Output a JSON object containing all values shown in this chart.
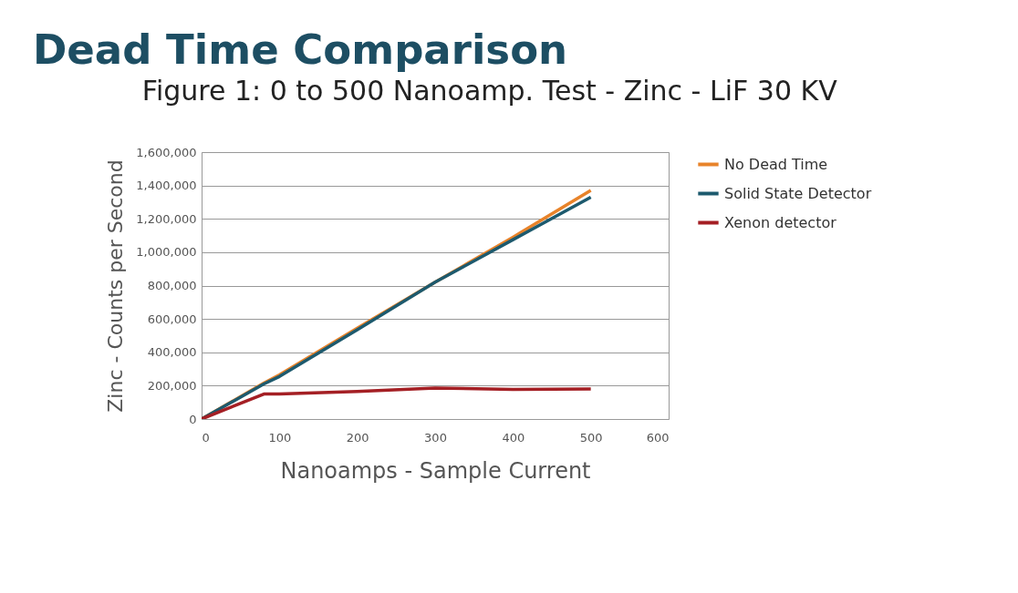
{
  "chart_data": {
    "type": "line",
    "title": "Dead Time Comparison",
    "subtitle": "Figure 1: 0 to 500 Nanoamp. Test - Zinc - LiF 30 KV",
    "xlabel": "Nanoamps - Sample Current",
    "ylabel": "Zinc - Counts per Second",
    "x": [
      0,
      80,
      100,
      200,
      300,
      400,
      500
    ],
    "series": [
      {
        "name": "No Dead Time",
        "color": "#e8832a",
        "values": [
          0,
          215000,
          265000,
          545000,
          820000,
          1090000,
          1370000
        ]
      },
      {
        "name": "Solid State Detector",
        "color": "#1d5a6e",
        "values": [
          0,
          210000,
          255000,
          535000,
          820000,
          1075000,
          1330000
        ]
      },
      {
        "name": "Xenon detector",
        "color": "#a41f24",
        "values": [
          0,
          150000,
          150000,
          165000,
          185000,
          178000,
          180000
        ]
      }
    ],
    "xlim": [
      0,
      600
    ],
    "xticks": [
      0,
      100,
      200,
      300,
      400,
      500,
      600
    ],
    "ylim": [
      0,
      1600000
    ],
    "yticks": [
      0,
      {
        "value": 200000,
        "label": "200,000"
      },
      {
        "value": 400000,
        "label": "400,000"
      },
      {
        "value": 600000,
        "label": "600,000"
      },
      {
        "value": 800000,
        "label": "800,000"
      },
      {
        "value": 1000000,
        "label": "1,000,000"
      },
      {
        "value": 1200000,
        "label": "1,200,000"
      },
      {
        "value": 1400000,
        "label": "1,400,000"
      },
      {
        "value": 1600000,
        "label": "1,600,000"
      }
    ],
    "grid": "y",
    "legend": "right",
    "marker": "none",
    "line_style": "solid"
  }
}
